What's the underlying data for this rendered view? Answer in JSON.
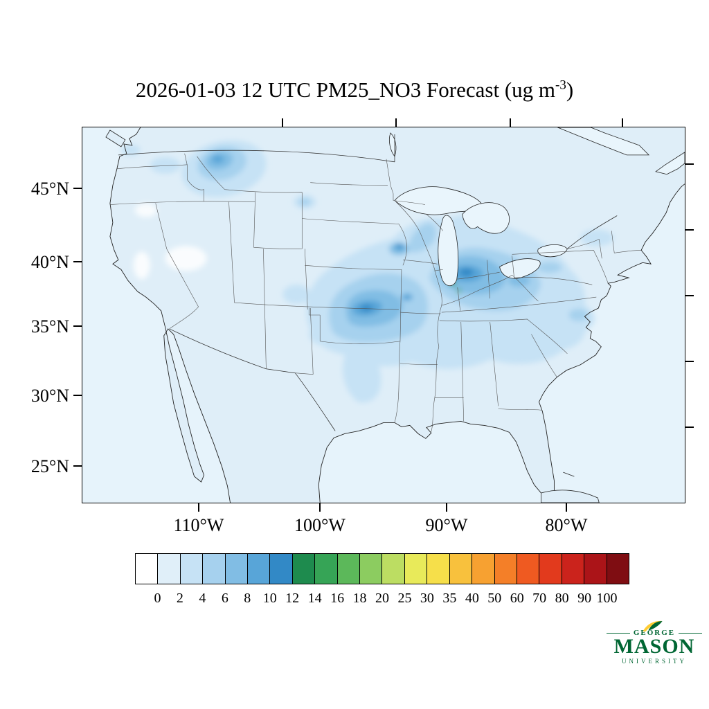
{
  "title": {
    "text": "2026-01-03 12 UTC PM25_NO3 Forecast (ug m",
    "exp": "-3",
    "close": ")"
  },
  "map": {
    "y_axis_labels": [
      "45°N",
      "40°N",
      "35°N",
      "30°N",
      "25°N"
    ],
    "x_axis_labels": [
      "110°W",
      "100°W",
      "90°W",
      "80°W"
    ]
  },
  "colorbar": {
    "tick_labels": [
      "0",
      "2",
      "4",
      "6",
      "8",
      "10",
      "12",
      "14",
      "16",
      "18",
      "20",
      "25",
      "30",
      "35",
      "40",
      "50",
      "60",
      "70",
      "80",
      "90",
      "100"
    ],
    "colors": [
      "#ffffff",
      "#e0eff9",
      "#c6e2f5",
      "#a6d1ee",
      "#81bde4",
      "#58a5d8",
      "#3289c6",
      "#1e8b4e",
      "#36a456",
      "#5cb85a",
      "#8ccc60",
      "#bcdd62",
      "#e8ea5a",
      "#f6df4a",
      "#f8c13d",
      "#f7a131",
      "#f47f28",
      "#ef5a21",
      "#e23a1d",
      "#cb231c",
      "#ab1418",
      "#7f0d12"
    ]
  },
  "logo": {
    "top": "GEORGE",
    "name": "MASON",
    "bottom": "UNIVERSITY",
    "green": "#006633",
    "gold": "#FFCC33"
  },
  "chart_data": {
    "type": "heatmap",
    "title": "2026-01-03 12 UTC PM25_NO3 Forecast (ug m-3)",
    "variable": "PM25_NO3",
    "valid_time": "2026-01-03 12 UTC",
    "units": "ug m-3",
    "region": "Contiguous United States (Lambert conformal map)",
    "lat_ticks_deg_north": [
      45,
      40,
      35,
      30,
      25
    ],
    "lon_ticks_deg_west": [
      110,
      100,
      90,
      80
    ],
    "levels": [
      0,
      2,
      4,
      6,
      8,
      10,
      12,
      14,
      16,
      18,
      20,
      25,
      30,
      35,
      40,
      50,
      60,
      70,
      80,
      90,
      100
    ],
    "palette": [
      "#ffffff",
      "#e0eff9",
      "#c6e2f5",
      "#a6d1ee",
      "#81bde4",
      "#58a5d8",
      "#3289c6",
      "#1e8b4e",
      "#36a456",
      "#5cb85a",
      "#8ccc60",
      "#bcdd62",
      "#e8ea5a",
      "#f6df4a",
      "#f8c13d",
      "#f7a131",
      "#f47f28",
      "#ef5a21",
      "#e23a1d",
      "#cb231c",
      "#ab1418",
      "#7f0d12"
    ],
    "legend_position": "bottom",
    "observed_features": [
      {
        "region": "Ohio Valley / Illinois-Indiana",
        "value_ug_m3": "10-12 broad, small 16-18 maximum"
      },
      {
        "region": "Iowa-Wisconsin border",
        "value_ug_m3": "8-12 local spot"
      },
      {
        "region": "Central Plains (Kansas-Oklahoma-Missouri)",
        "value_ug_m3": "6-10"
      },
      {
        "region": "Northwestern Montana",
        "value_ug_m3": "4-10"
      },
      {
        "region": "Mid-Atlantic (Pennsylvania-Virginia)",
        "value_ug_m3": "2-6"
      },
      {
        "region": "Background over most of domain and oceans",
        "value_ug_m3": "0-2"
      }
    ]
  }
}
